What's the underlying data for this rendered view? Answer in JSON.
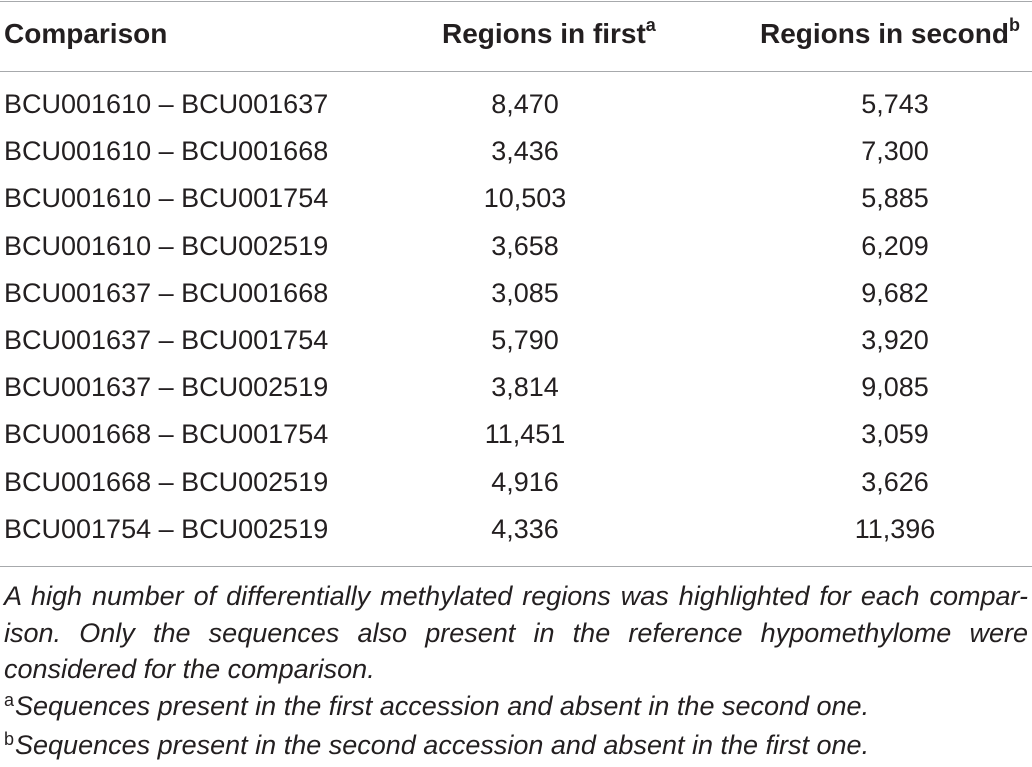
{
  "table": {
    "headers": {
      "comparison": "Comparison",
      "first": "Regions in first",
      "first_mark": "a",
      "second": "Regions in second",
      "second_mark": "b"
    },
    "rows": [
      {
        "comparison": "BCU001610 – BCU001637",
        "first": "8,470",
        "second": "5,743"
      },
      {
        "comparison": "BCU001610 – BCU001668",
        "first": "3,436",
        "second": "7,300"
      },
      {
        "comparison": "BCU001610 – BCU001754",
        "first": "10,503",
        "second": "5,885"
      },
      {
        "comparison": "BCU001610 – BCU002519",
        "first": "3,658",
        "second": "6,209"
      },
      {
        "comparison": "BCU001637 – BCU001668",
        "first": "3,085",
        "second": "9,682"
      },
      {
        "comparison": "BCU001637 – BCU001754",
        "first": "5,790",
        "second": "3,920"
      },
      {
        "comparison": "BCU001637 – BCU002519",
        "first": "3,814",
        "second": "9,085"
      },
      {
        "comparison": "BCU001668 – BCU001754",
        "first": "11,451",
        "second": "3,059"
      },
      {
        "comparison": "BCU001668 – BCU002519",
        "first": "4,916",
        "second": "3,626"
      },
      {
        "comparison": "BCU001754 – BCU002519",
        "first": "4,336",
        "second": "11,396"
      }
    ]
  },
  "footnotes": {
    "main": "A high number of differentially methylated regions was highlighted for each compar-ison. Only the sequences also present in the reference hypomethylome were considered for the comparison.",
    "a_mark": "a",
    "a_text": "Sequences present in the first accession and absent in the second one.",
    "b_mark": "b",
    "b_text": "Sequences present in the second accession and absent in the first one."
  }
}
